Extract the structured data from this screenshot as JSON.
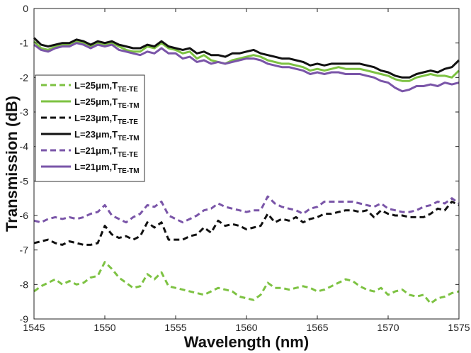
{
  "chart_data": {
    "type": "line",
    "xlabel": "Wavelength (nm)",
    "ylabel": "Transmission (dB)",
    "xlim": [
      1545,
      1575
    ],
    "ylim": [
      -9,
      0
    ],
    "xticks": [
      "1545",
      "1550",
      "1555",
      "1560",
      "1565",
      "1570",
      "1575"
    ],
    "yticks": [
      "0",
      "-1",
      "-2",
      "-3",
      "-4",
      "-5",
      "-6",
      "-7",
      "-8",
      "-9"
    ],
    "grid": false,
    "legend_position": "left",
    "x": [
      1545,
      1545.5,
      1546,
      1546.5,
      1547,
      1547.5,
      1548,
      1548.5,
      1549,
      1549.5,
      1550,
      1550.5,
      1551,
      1551.5,
      1552,
      1552.5,
      1553,
      1553.5,
      1554,
      1554.5,
      1555,
      1555.5,
      1556,
      1556.5,
      1557,
      1557.5,
      1558,
      1558.5,
      1559,
      1559.5,
      1560,
      1560.5,
      1561,
      1561.5,
      1562,
      1562.5,
      1563,
      1563.5,
      1564,
      1564.5,
      1565,
      1565.5,
      1566,
      1566.5,
      1567,
      1567.5,
      1568,
      1568.5,
      1569,
      1569.5,
      1570,
      1570.5,
      1571,
      1571.5,
      1572,
      1572.5,
      1573,
      1573.5,
      1574,
      1574.5,
      1575
    ],
    "series": [
      {
        "name_main": "L=25μm,T",
        "name_sub": "TE-TE",
        "color": "#7dc242",
        "dash": "dashed",
        "values": [
          -8.2,
          -8.05,
          -7.95,
          -7.85,
          -8.0,
          -7.9,
          -8.0,
          -7.95,
          -7.8,
          -7.75,
          -7.35,
          -7.55,
          -7.8,
          -7.95,
          -8.1,
          -8.05,
          -7.7,
          -7.85,
          -7.65,
          -8.05,
          -8.1,
          -8.15,
          -8.2,
          -8.25,
          -8.3,
          -8.2,
          -8.1,
          -8.15,
          -8.2,
          -8.35,
          -8.4,
          -8.45,
          -8.3,
          -7.95,
          -8.1,
          -8.1,
          -8.15,
          -8.1,
          -8.05,
          -8.1,
          -8.2,
          -8.15,
          -8.05,
          -7.95,
          -7.85,
          -7.9,
          -8.05,
          -8.15,
          -8.2,
          -8.1,
          -8.3,
          -8.2,
          -8.15,
          -8.3,
          -8.35,
          -8.3,
          -8.55,
          -8.4,
          -8.35,
          -8.25,
          -8.2
        ]
      },
      {
        "name_main": "L=25μm,T",
        "name_sub": "TE-TM",
        "color": "#7dc242",
        "dash": "solid",
        "values": [
          -0.95,
          -1.15,
          -1.2,
          -1.1,
          -1.05,
          -1.05,
          -0.95,
          -1.0,
          -1.1,
          -1.0,
          -1.05,
          -1.0,
          -1.1,
          -1.2,
          -1.25,
          -1.25,
          -1.1,
          -1.15,
          -1.0,
          -1.15,
          -1.2,
          -1.3,
          -1.25,
          -1.45,
          -1.35,
          -1.5,
          -1.55,
          -1.6,
          -1.5,
          -1.45,
          -1.4,
          -1.35,
          -1.4,
          -1.5,
          -1.55,
          -1.6,
          -1.6,
          -1.65,
          -1.7,
          -1.8,
          -1.75,
          -1.8,
          -1.75,
          -1.7,
          -1.75,
          -1.75,
          -1.75,
          -1.8,
          -1.85,
          -1.9,
          -1.95,
          -2.05,
          -2.1,
          -2.1,
          -2.0,
          -1.95,
          -1.9,
          -1.95,
          -1.95,
          -2.0,
          -1.8
        ]
      },
      {
        "name_main": "L=23μm,T",
        "name_sub": "TE-TE",
        "color": "#111111",
        "dash": "dashed",
        "values": [
          -6.8,
          -6.75,
          -6.7,
          -6.8,
          -6.85,
          -6.75,
          -6.8,
          -6.85,
          -6.85,
          -6.8,
          -6.3,
          -6.55,
          -6.65,
          -6.6,
          -6.7,
          -6.6,
          -6.2,
          -6.35,
          -6.2,
          -6.7,
          -6.7,
          -6.7,
          -6.6,
          -6.55,
          -6.35,
          -6.5,
          -6.15,
          -6.3,
          -6.25,
          -6.3,
          -6.4,
          -6.35,
          -6.3,
          -5.95,
          -6.2,
          -6.1,
          -6.15,
          -6.05,
          -6.2,
          -6.1,
          -6.05,
          -5.95,
          -5.95,
          -5.9,
          -5.85,
          -5.85,
          -5.9,
          -5.85,
          -6.05,
          -5.85,
          -5.95,
          -6.0,
          -6.0,
          -6.05,
          -6.05,
          -6.05,
          -5.95,
          -5.8,
          -5.85,
          -5.6,
          -5.7
        ]
      },
      {
        "name_main": "L=23μm,T",
        "name_sub": "TE-TM",
        "color": "#111111",
        "dash": "solid",
        "values": [
          -0.85,
          -1.05,
          -1.1,
          -1.05,
          -1.0,
          -1.0,
          -0.9,
          -0.95,
          -1.05,
          -0.95,
          -1.0,
          -0.95,
          -1.05,
          -1.1,
          -1.15,
          -1.15,
          -1.05,
          -1.1,
          -0.95,
          -1.1,
          -1.15,
          -1.2,
          -1.15,
          -1.3,
          -1.25,
          -1.35,
          -1.35,
          -1.4,
          -1.3,
          -1.3,
          -1.25,
          -1.2,
          -1.3,
          -1.35,
          -1.4,
          -1.45,
          -1.45,
          -1.5,
          -1.55,
          -1.65,
          -1.6,
          -1.65,
          -1.6,
          -1.6,
          -1.6,
          -1.6,
          -1.6,
          -1.65,
          -1.7,
          -1.8,
          -1.85,
          -1.95,
          -2.0,
          -2.0,
          -1.9,
          -1.85,
          -1.8,
          -1.85,
          -1.75,
          -1.7,
          -1.5
        ]
      },
      {
        "name_main": "L=21μm,T",
        "name_sub": "TE-TE",
        "color": "#7a55a8",
        "dash": "dashed",
        "values": [
          -6.15,
          -6.2,
          -6.1,
          -6.05,
          -6.1,
          -6.05,
          -6.1,
          -6.05,
          -5.95,
          -5.9,
          -5.7,
          -6.0,
          -6.1,
          -6.2,
          -6.05,
          -5.95,
          -5.7,
          -5.75,
          -5.6,
          -6.0,
          -6.1,
          -6.2,
          -6.1,
          -6.0,
          -5.85,
          -5.8,
          -5.65,
          -5.75,
          -5.8,
          -5.85,
          -5.9,
          -5.85,
          -5.85,
          -5.45,
          -5.65,
          -5.75,
          -5.8,
          -5.85,
          -5.95,
          -5.8,
          -5.75,
          -5.6,
          -5.6,
          -5.6,
          -5.6,
          -5.6,
          -5.65,
          -5.7,
          -5.75,
          -5.65,
          -5.8,
          -5.85,
          -5.9,
          -5.9,
          -5.85,
          -5.75,
          -5.7,
          -5.6,
          -5.65,
          -5.5,
          -5.65
        ]
      },
      {
        "name_main": "L=21μm,T",
        "name_sub": "TE-TM",
        "color": "#7a55a8",
        "dash": "solid",
        "values": [
          -1.05,
          -1.2,
          -1.25,
          -1.15,
          -1.1,
          -1.1,
          -1.0,
          -1.05,
          -1.15,
          -1.05,
          -1.1,
          -1.05,
          -1.2,
          -1.25,
          -1.3,
          -1.35,
          -1.25,
          -1.3,
          -1.15,
          -1.3,
          -1.3,
          -1.45,
          -1.4,
          -1.55,
          -1.5,
          -1.6,
          -1.55,
          -1.6,
          -1.55,
          -1.5,
          -1.45,
          -1.45,
          -1.5,
          -1.6,
          -1.65,
          -1.7,
          -1.7,
          -1.75,
          -1.8,
          -1.9,
          -1.85,
          -1.9,
          -1.85,
          -1.85,
          -1.9,
          -1.9,
          -1.9,
          -1.95,
          -2.0,
          -2.1,
          -2.15,
          -2.3,
          -2.4,
          -2.35,
          -2.25,
          -2.25,
          -2.2,
          -2.25,
          -2.15,
          -2.2,
          -2.15
        ]
      }
    ]
  }
}
